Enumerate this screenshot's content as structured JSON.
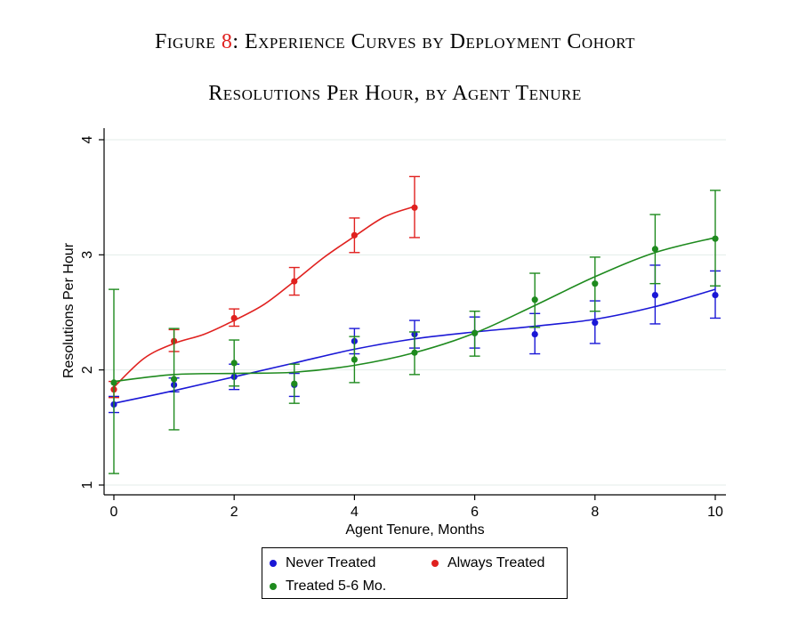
{
  "figure": {
    "label": "Figure",
    "number": "8",
    "title": ": Experience Curves by Deployment Cohort",
    "subtitle": "Resolutions Per Hour, by Agent Tenure"
  },
  "chart_data": {
    "type": "scatter",
    "xlabel": "Agent Tenure, Months",
    "ylabel": "Resolutions Per Hour",
    "xlim": [
      0,
      10
    ],
    "ylim": [
      1,
      4
    ],
    "x_ticks": [
      "0",
      "2",
      "4",
      "6",
      "8",
      "10"
    ],
    "y_ticks": [
      "1",
      "2",
      "3",
      "4"
    ],
    "grid": "horizontal",
    "legend_position": "bottom",
    "series": [
      {
        "name": "Never Treated",
        "color": "#1a17d6",
        "points": [
          {
            "x": 0,
            "y": 1.7,
            "lo": 1.63,
            "hi": 1.77
          },
          {
            "x": 1,
            "y": 1.87,
            "lo": 1.81,
            "hi": 1.93
          },
          {
            "x": 2,
            "y": 1.94,
            "lo": 1.83,
            "hi": 2.05
          },
          {
            "x": 3,
            "y": 1.87,
            "lo": 1.77,
            "hi": 1.97
          },
          {
            "x": 4,
            "y": 2.25,
            "lo": 2.14,
            "hi": 2.36
          },
          {
            "x": 5,
            "y": 2.31,
            "lo": 2.19,
            "hi": 2.43
          },
          {
            "x": 6,
            "y": 2.32,
            "lo": 2.19,
            "hi": 2.46
          },
          {
            "x": 7,
            "y": 2.31,
            "lo": 2.14,
            "hi": 2.49
          },
          {
            "x": 8,
            "y": 2.41,
            "lo": 2.23,
            "hi": 2.6
          },
          {
            "x": 9,
            "y": 2.65,
            "lo": 2.4,
            "hi": 2.91
          },
          {
            "x": 10,
            "y": 2.65,
            "lo": 2.45,
            "hi": 2.86
          }
        ],
        "fit": [
          [
            0,
            1.71
          ],
          [
            1,
            1.82
          ],
          [
            2,
            1.94
          ],
          [
            3,
            2.06
          ],
          [
            4,
            2.18
          ],
          [
            5,
            2.27
          ],
          [
            6,
            2.33
          ],
          [
            7,
            2.38
          ],
          [
            8,
            2.44
          ],
          [
            9,
            2.55
          ],
          [
            10,
            2.7
          ]
        ]
      },
      {
        "name": "Always Treated",
        "color": "#e0211f",
        "points": [
          {
            "x": 0,
            "y": 1.83,
            "lo": 1.76,
            "hi": 1.9
          },
          {
            "x": 1,
            "y": 2.25,
            "lo": 2.16,
            "hi": 2.35
          },
          {
            "x": 2,
            "y": 2.45,
            "lo": 2.38,
            "hi": 2.53
          },
          {
            "x": 3,
            "y": 2.77,
            "lo": 2.65,
            "hi": 2.89
          },
          {
            "x": 4,
            "y": 3.17,
            "lo": 3.02,
            "hi": 3.32
          },
          {
            "x": 5,
            "y": 3.41,
            "lo": 3.15,
            "hi": 3.68
          }
        ],
        "fit": [
          [
            0,
            1.85
          ],
          [
            0.5,
            2.1
          ],
          [
            1,
            2.23
          ],
          [
            1.5,
            2.31
          ],
          [
            2,
            2.43
          ],
          [
            2.5,
            2.57
          ],
          [
            3,
            2.77
          ],
          [
            3.5,
            2.98
          ],
          [
            4,
            3.16
          ],
          [
            4.5,
            3.33
          ],
          [
            5,
            3.42
          ]
        ]
      },
      {
        "name": "Treated 5-6 Mo.",
        "color": "#1e8a1e",
        "points": [
          {
            "x": 0,
            "y": 1.89,
            "lo": 1.1,
            "hi": 2.7
          },
          {
            "x": 1,
            "y": 1.92,
            "lo": 1.48,
            "hi": 2.36
          },
          {
            "x": 2,
            "y": 2.06,
            "lo": 1.86,
            "hi": 2.26
          },
          {
            "x": 3,
            "y": 1.88,
            "lo": 1.71,
            "hi": 2.05
          },
          {
            "x": 4,
            "y": 2.09,
            "lo": 1.89,
            "hi": 2.29
          },
          {
            "x": 5,
            "y": 2.15,
            "lo": 1.96,
            "hi": 2.33
          },
          {
            "x": 6,
            "y": 2.32,
            "lo": 2.12,
            "hi": 2.51
          },
          {
            "x": 7,
            "y": 2.61,
            "lo": 2.37,
            "hi": 2.84
          },
          {
            "x": 8,
            "y": 2.75,
            "lo": 2.51,
            "hi": 2.98
          },
          {
            "x": 9,
            "y": 3.05,
            "lo": 2.75,
            "hi": 3.35
          },
          {
            "x": 10,
            "y": 3.14,
            "lo": 2.73,
            "hi": 3.56
          }
        ],
        "fit": [
          [
            0,
            1.9
          ],
          [
            1,
            1.96
          ],
          [
            2,
            1.97
          ],
          [
            3,
            1.98
          ],
          [
            4,
            2.04
          ],
          [
            5,
            2.15
          ],
          [
            6,
            2.32
          ],
          [
            7,
            2.56
          ],
          [
            8,
            2.81
          ],
          [
            9,
            3.02
          ],
          [
            10,
            3.15
          ]
        ]
      }
    ]
  }
}
